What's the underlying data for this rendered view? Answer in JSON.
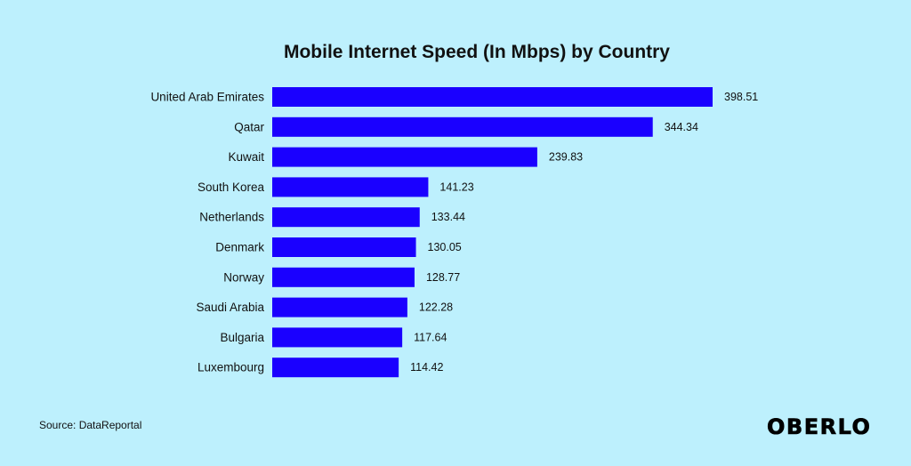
{
  "chart_data": {
    "type": "bar",
    "orientation": "horizontal",
    "title": "Mobile Internet Speed (In Mbps) by Country",
    "categories": [
      "United Arab Emirates",
      "Qatar",
      "Kuwait",
      "South Korea",
      "Netherlands",
      "Denmark",
      "Norway",
      "Saudi Arabia",
      "Bulgaria",
      "Luxembourg"
    ],
    "values": [
      398.51,
      344.34,
      239.83,
      141.23,
      133.44,
      130.05,
      128.77,
      122.28,
      117.64,
      114.42
    ],
    "value_labels": [
      "398.51",
      "344.34",
      "239.83",
      "141.23",
      "133.44",
      "130.05",
      "128.77",
      "122.28",
      "117.64",
      "114.42"
    ],
    "xlim": [
      0,
      398.51
    ],
    "bar_color": "#1a00ff",
    "grid": false,
    "legend": "none"
  },
  "footer": {
    "source": "Source: DataReportal",
    "brand": "OBERLO"
  },
  "colors": {
    "background": "#bdf0fd",
    "bar": "#1a00ff",
    "text": "#111111"
  }
}
